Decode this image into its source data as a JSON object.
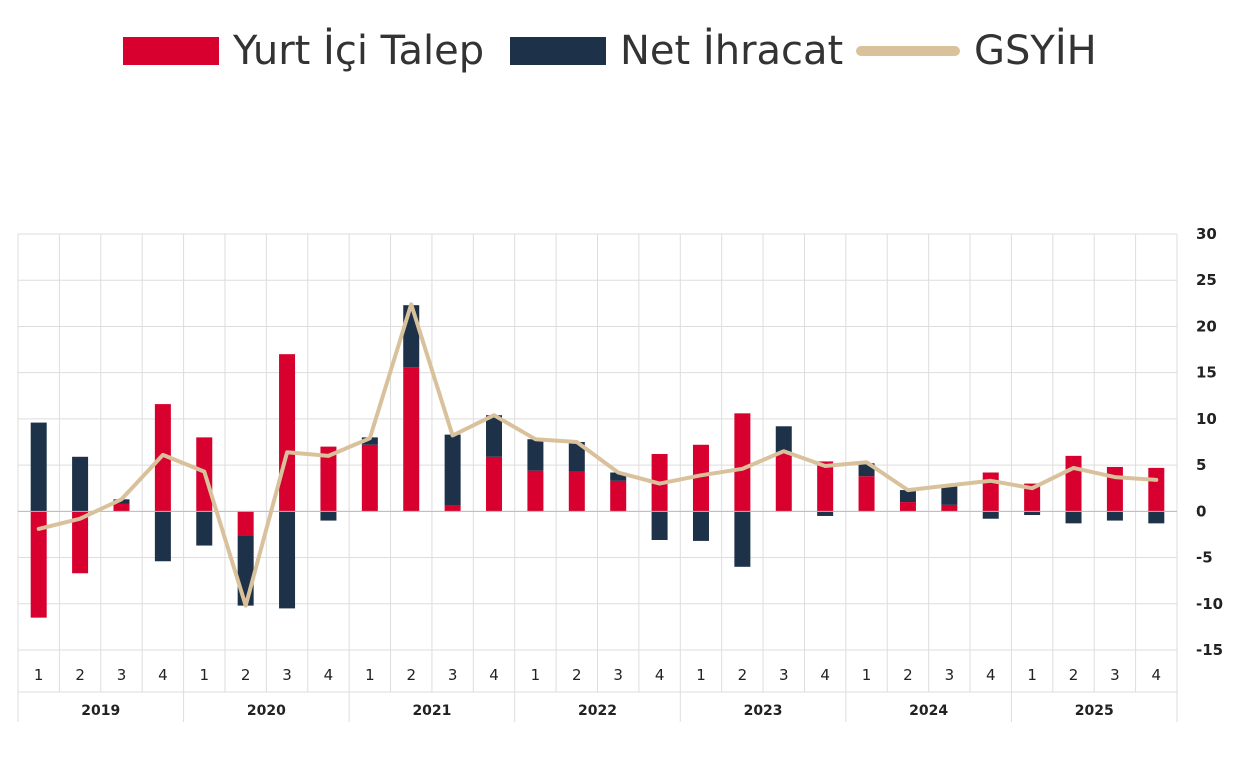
{
  "colors": {
    "domestic": "#d8002e",
    "net_exports": "#1d3248",
    "gdp": "#d9c19c",
    "grid": "#dddddd"
  },
  "legend": [
    {
      "label": "Yurt İçi Talep",
      "type": "bar",
      "color": "#d8002e"
    },
    {
      "label": "Net İhracat",
      "type": "bar",
      "color": "#1d3248"
    },
    {
      "label": "GSYİH",
      "type": "line",
      "color": "#d9c19c"
    }
  ],
  "chart_data": {
    "type": "bar",
    "stacked": true,
    "title": "",
    "xlabel": "",
    "ylabel": "",
    "ylim": [
      -15,
      30
    ],
    "yticks": [
      30,
      25,
      20,
      15,
      10,
      5,
      0,
      -5,
      -10,
      -15
    ],
    "y_axis_position": "right",
    "grid": true,
    "legend_position": "top-center",
    "years": [
      "2019",
      "2020",
      "2021",
      "2022",
      "2023",
      "2024",
      "2025"
    ],
    "quarter_labels": [
      "1",
      "2",
      "3",
      "4",
      "1",
      "2",
      "3",
      "4",
      "1",
      "2",
      "3",
      "4",
      "1",
      "2",
      "3",
      "4",
      "1",
      "2",
      "3",
      "4",
      "1",
      "2",
      "3",
      "4",
      "1",
      "2",
      "3",
      "4"
    ],
    "series": [
      {
        "name": "Yurt İçi Talep",
        "type": "bar",
        "values": [
          -11.5,
          -6.7,
          0.8,
          11.6,
          8.0,
          -2.6,
          17.0,
          7.0,
          7.2,
          15.6,
          0.6,
          5.9,
          4.4,
          4.3,
          3.3,
          6.2,
          7.2,
          10.6,
          6.2,
          5.4,
          3.8,
          1.0,
          0.7,
          4.2,
          3.0,
          6.0,
          4.8,
          4.7
        ]
      },
      {
        "name": "Net İhracat",
        "type": "bar",
        "values": [
          9.6,
          5.9,
          0.5,
          -5.4,
          -3.7,
          -7.6,
          -10.5,
          -1.0,
          0.8,
          6.7,
          7.7,
          4.5,
          3.4,
          3.2,
          0.9,
          -3.1,
          -3.2,
          -6.0,
          3.0,
          -0.5,
          1.4,
          1.3,
          2.1,
          -0.8,
          -0.4,
          -1.3,
          -1.0,
          -1.3
        ]
      },
      {
        "name": "GSYİH",
        "type": "line",
        "values": [
          -1.9,
          -0.8,
          1.3,
          6.1,
          4.3,
          -10.2,
          6.4,
          6.0,
          7.9,
          22.4,
          8.2,
          10.4,
          7.8,
          7.5,
          4.2,
          3.0,
          3.9,
          4.6,
          6.5,
          4.9,
          5.3,
          2.3,
          2.8,
          3.3,
          2.5,
          4.7,
          3.7,
          3.4
        ]
      }
    ]
  }
}
